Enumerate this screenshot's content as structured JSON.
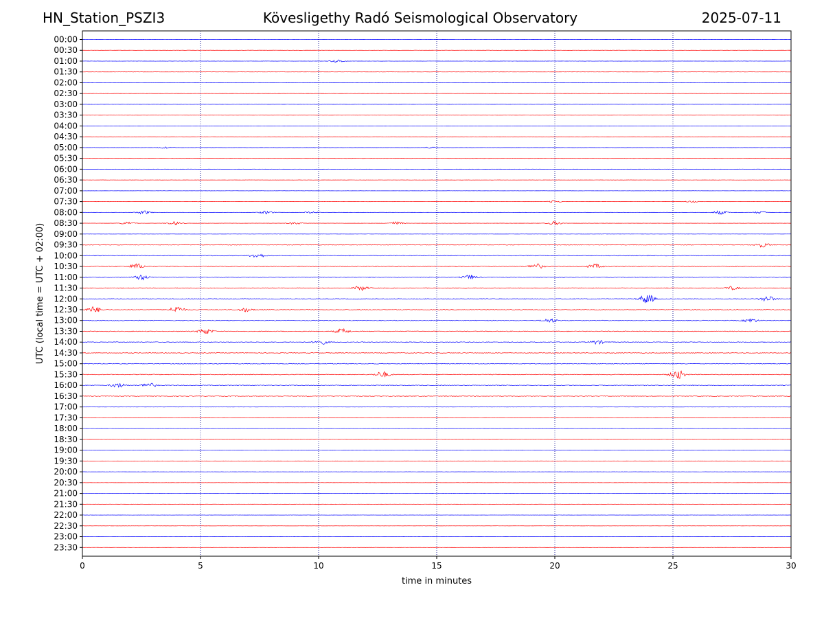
{
  "header": {
    "station": "HN_Station_PSZI3",
    "observatory": "Kövesligethy Radó Seismological Observatory",
    "date": "2025-07-11"
  },
  "chart_data": {
    "type": "line",
    "title": "Kövesligethy Radó Seismological Observatory",
    "xlabel": "time in minutes",
    "ylabel": "UTC (local time = UTC + 02:00)",
    "xlim": [
      0,
      30
    ],
    "x_ticks": [
      "0",
      "5",
      "10",
      "15",
      "20",
      "25",
      "30"
    ],
    "x_tick_values": [
      0,
      5,
      10,
      15,
      20,
      25,
      30
    ],
    "y_ticks": [
      "00:00",
      "00:30",
      "01:00",
      "01:30",
      "02:00",
      "02:30",
      "03:00",
      "03:30",
      "04:00",
      "04:30",
      "05:00",
      "05:30",
      "06:00",
      "06:30",
      "07:00",
      "07:30",
      "08:00",
      "08:30",
      "09:00",
      "09:30",
      "10:00",
      "10:30",
      "11:00",
      "11:30",
      "12:00",
      "12:30",
      "13:00",
      "13:30",
      "14:00",
      "14:30",
      "15:00",
      "15:30",
      "16:00",
      "16:30",
      "17:00",
      "17:30",
      "18:00",
      "18:30",
      "19:00",
      "19:30",
      "20:00",
      "20:30",
      "21:00",
      "21:30",
      "22:00",
      "22:30",
      "23:00",
      "23:30"
    ],
    "trace_colors": [
      "#0000ff",
      "#ff0000"
    ],
    "vertical_gridlines_at": [
      5,
      10,
      15,
      20,
      25
    ],
    "activity_bursts": [
      {
        "row": "01:00",
        "minute": 10.8,
        "amp": 0.25
      },
      {
        "row": "05:00",
        "minute": 3.5,
        "amp": 0.15
      },
      {
        "row": "05:00",
        "minute": 14.8,
        "amp": 0.15
      },
      {
        "row": "07:30",
        "minute": 20.0,
        "amp": 0.2
      },
      {
        "row": "07:30",
        "minute": 25.8,
        "amp": 0.15
      },
      {
        "row": "08:00",
        "minute": 2.6,
        "amp": 0.35
      },
      {
        "row": "08:00",
        "minute": 7.8,
        "amp": 0.3
      },
      {
        "row": "08:00",
        "minute": 9.7,
        "amp": 0.2
      },
      {
        "row": "08:00",
        "minute": 27.0,
        "amp": 0.35
      },
      {
        "row": "08:00",
        "minute": 28.7,
        "amp": 0.2
      },
      {
        "row": "08:30",
        "minute": 1.9,
        "amp": 0.25
      },
      {
        "row": "08:30",
        "minute": 3.9,
        "amp": 0.3
      },
      {
        "row": "08:30",
        "minute": 9.0,
        "amp": 0.2
      },
      {
        "row": "08:30",
        "minute": 13.3,
        "amp": 0.3
      },
      {
        "row": "08:30",
        "minute": 20.0,
        "amp": 0.35
      },
      {
        "row": "09:30",
        "minute": 28.8,
        "amp": 0.4
      },
      {
        "row": "10:00",
        "minute": 7.4,
        "amp": 0.4
      },
      {
        "row": "10:30",
        "minute": 2.3,
        "amp": 0.5
      },
      {
        "row": "10:30",
        "minute": 19.2,
        "amp": 0.5
      },
      {
        "row": "10:30",
        "minute": 21.7,
        "amp": 0.4
      },
      {
        "row": "11:00",
        "minute": 2.5,
        "amp": 0.45
      },
      {
        "row": "11:00",
        "minute": 16.4,
        "amp": 0.4
      },
      {
        "row": "11:30",
        "minute": 11.8,
        "amp": 0.4
      },
      {
        "row": "11:30",
        "minute": 27.5,
        "amp": 0.3
      },
      {
        "row": "12:00",
        "minute": 23.9,
        "amp": 0.9
      },
      {
        "row": "12:00",
        "minute": 29.0,
        "amp": 0.5
      },
      {
        "row": "12:30",
        "minute": 0.5,
        "amp": 0.55
      },
      {
        "row": "12:30",
        "minute": 4.0,
        "amp": 0.6
      },
      {
        "row": "12:30",
        "minute": 6.9,
        "amp": 0.35
      },
      {
        "row": "13:00",
        "minute": 19.8,
        "amp": 0.35
      },
      {
        "row": "13:00",
        "minute": 28.3,
        "amp": 0.35
      },
      {
        "row": "13:30",
        "minute": 5.2,
        "amp": 0.5
      },
      {
        "row": "13:30",
        "minute": 11.0,
        "amp": 0.45
      },
      {
        "row": "14:00",
        "minute": 10.1,
        "amp": 0.4
      },
      {
        "row": "14:00",
        "minute": 21.8,
        "amp": 0.35
      },
      {
        "row": "15:30",
        "minute": 12.7,
        "amp": 0.55
      },
      {
        "row": "15:30",
        "minute": 25.2,
        "amp": 0.8
      },
      {
        "row": "16:00",
        "minute": 1.5,
        "amp": 0.4
      },
      {
        "row": "16:00",
        "minute": 2.8,
        "amp": 0.45
      }
    ],
    "busy_rows": [
      "09:30",
      "10:00",
      "10:30",
      "11:00",
      "11:30",
      "12:00",
      "12:30",
      "13:00",
      "13:30",
      "14:00",
      "14:30",
      "15:00",
      "15:30",
      "16:00",
      "16:30"
    ],
    "grid": true
  }
}
